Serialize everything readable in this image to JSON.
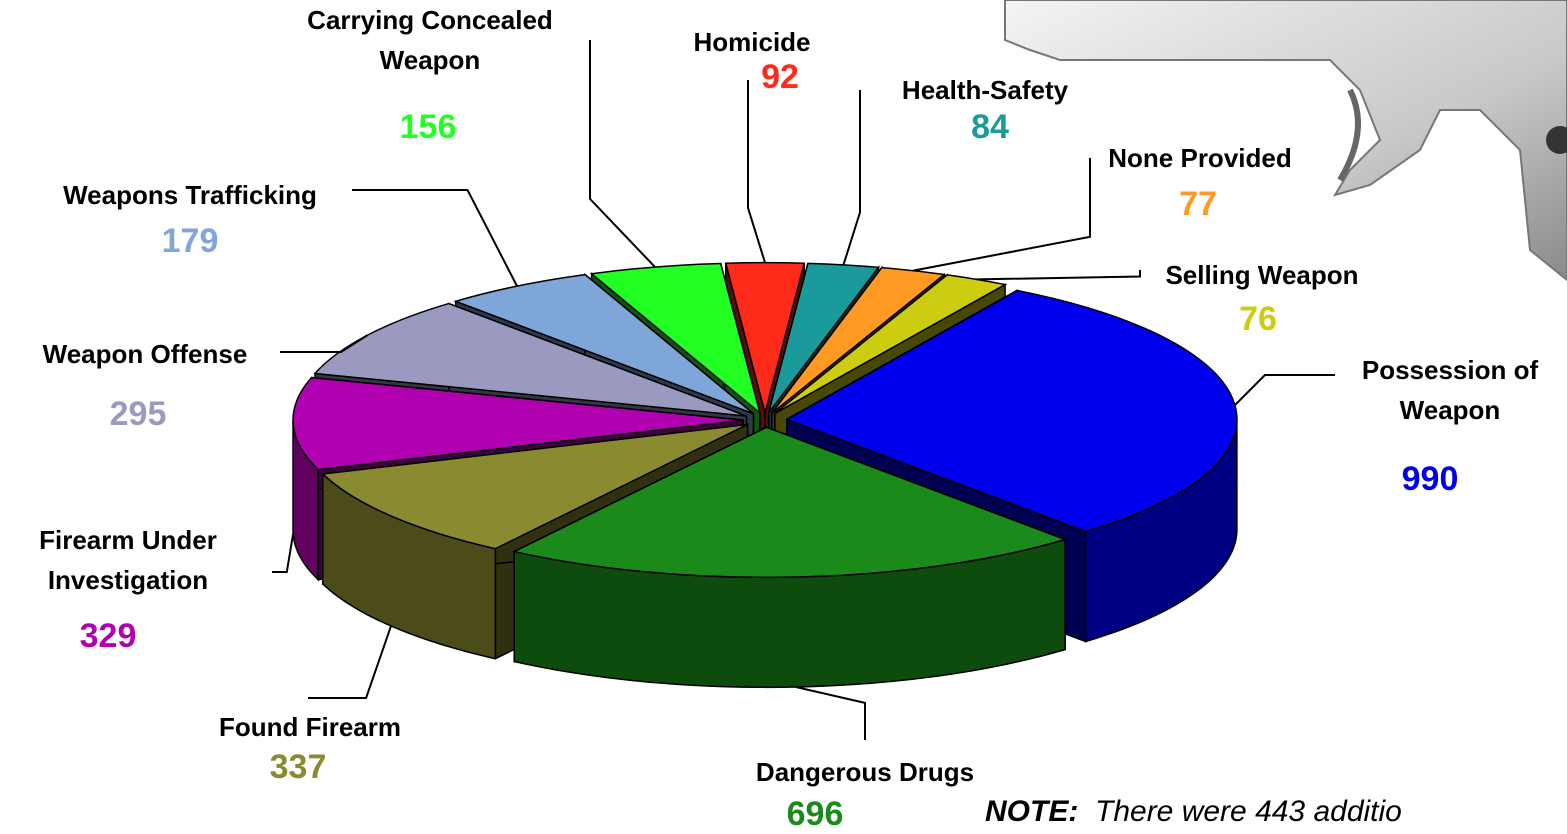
{
  "chart_data": {
    "type": "pie3d",
    "categories": [
      "Homicide",
      "Health-Safety",
      "None Provided",
      "Selling Weapon",
      "Possession of Weapon",
      "Dangerous Drugs",
      "Found Firearm",
      "Firearm Under Investigation",
      "Weapon Offense",
      "Weapons Trafficking",
      "Carrying Concealed Weapon"
    ],
    "values": [
      92,
      84,
      77,
      76,
      990,
      696,
      337,
      329,
      295,
      179,
      156
    ],
    "colors": [
      "#ff2a1a",
      "#1a9a9a",
      "#ff9922",
      "#cccc11",
      "#0000ee",
      "#1a8a1a",
      "#8a8a30",
      "#b000b0",
      "#9a9ac0",
      "#7fa6d8",
      "#22ff22"
    ],
    "note_label": "NOTE:",
    "note": "There were 443 additio"
  }
}
